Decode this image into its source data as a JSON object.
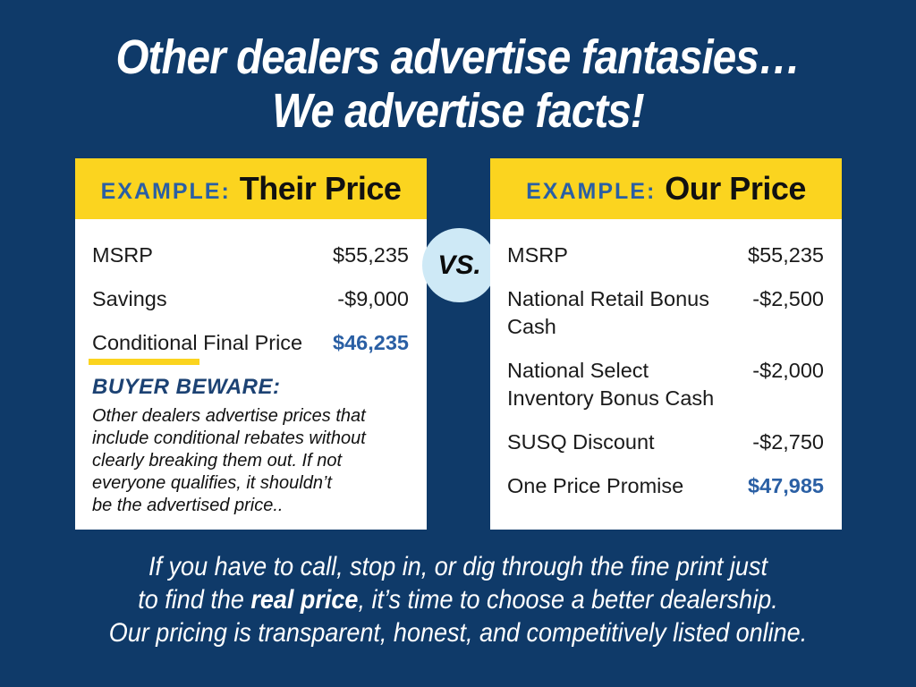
{
  "colors": {
    "background_navy": "#0F3A69",
    "header_yellow": "#FBD41F",
    "accent_blue": "#2A5FA4",
    "beware_blue": "#1C4273",
    "vs_circle_blue": "#CEE9F6"
  },
  "headline": {
    "line1": "Other dealers advertise fantasies…",
    "line2": "We advertise facts!"
  },
  "vs_label": "VS.",
  "their_card": {
    "example_label": "EXAMPLE:",
    "title": "Their Price",
    "rows": [
      {
        "label": "MSRP",
        "value": "$55,235"
      },
      {
        "label": "Savings",
        "value": "-$9,000"
      }
    ],
    "final_row": {
      "label_underlined": "Conditional",
      "label_rest": " Final Price",
      "value": "$46,235"
    },
    "warning": {
      "title": "BUYER BEWARE:",
      "lines": [
        "Other dealers advertise prices that",
        "include conditional rebates without",
        "clearly breaking them out. If not",
        "everyone qualifies, it shouldn’t",
        "be the advertised price.."
      ]
    }
  },
  "our_card": {
    "example_label": "EXAMPLE:",
    "title": "Our Price",
    "rows": [
      {
        "label": "MSRP",
        "value": "$55,235"
      },
      {
        "label": "National Retail Bonus Cash",
        "value": "-$2,500"
      },
      {
        "label": "National Select Inventory Bonus Cash",
        "value": "-$2,000"
      },
      {
        "label": "SUSQ Discount",
        "value": "-$2,750"
      }
    ],
    "final_row": {
      "label": "One Price Promise",
      "value": "$47,985"
    }
  },
  "footer": {
    "line1": "If you have to call, stop in, or dig through the fine print just",
    "line2_pre": "to find the ",
    "line2_bold": "real price",
    "line2_post": ", it’s time to choose a better dealership.",
    "line3": "Our pricing is transparent, honest, and competitively listed online."
  }
}
